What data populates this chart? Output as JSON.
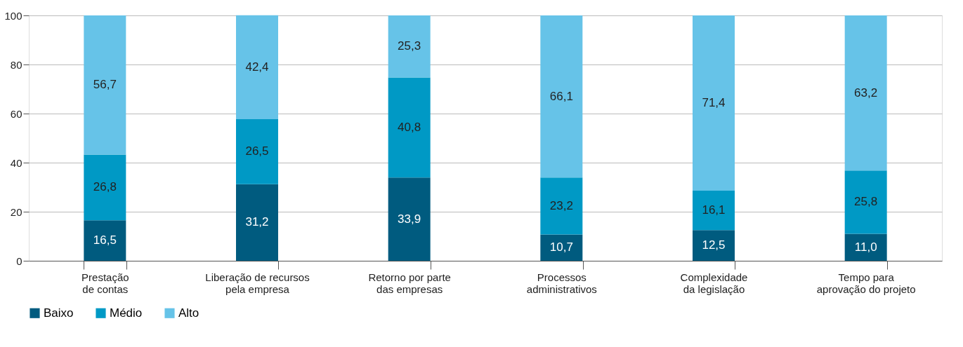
{
  "chart_data": {
    "type": "bar",
    "stacked": true,
    "categories": [
      "Prestação\nde contas",
      "Liberação de recursos\npela empresa",
      "Retorno por parte\ndas empresas",
      "Processos\nadministrativos",
      "Complexidade\nda legislação",
      "Tempo para\naprovação do projeto"
    ],
    "series": [
      {
        "name": "Baixo",
        "color": "#005b7f",
        "values": [
          16.5,
          31.2,
          33.9,
          10.7,
          12.5,
          11.0
        ],
        "value_labels": [
          "16,5",
          "31,2",
          "33,9",
          "10,7",
          "12,5",
          "11,0"
        ]
      },
      {
        "name": "Médio",
        "color": "#0099c5",
        "values": [
          26.8,
          26.5,
          40.8,
          23.2,
          16.1,
          25.8
        ],
        "value_labels": [
          "26,8",
          "26,5",
          "40,8",
          "23,2",
          "16,1",
          "25,8"
        ]
      },
      {
        "name": "Alto",
        "color": "#66c3e8",
        "values": [
          56.7,
          42.4,
          25.3,
          66.1,
          71.4,
          63.2
        ],
        "value_labels": [
          "56,7",
          "42,4",
          "25,3",
          "66,1",
          "71,4",
          "63,2"
        ]
      }
    ],
    "ylim": [
      0,
      100
    ],
    "yticks": [
      0,
      20,
      40,
      60,
      80,
      100
    ],
    "grid": "y",
    "legend": "bottom"
  }
}
